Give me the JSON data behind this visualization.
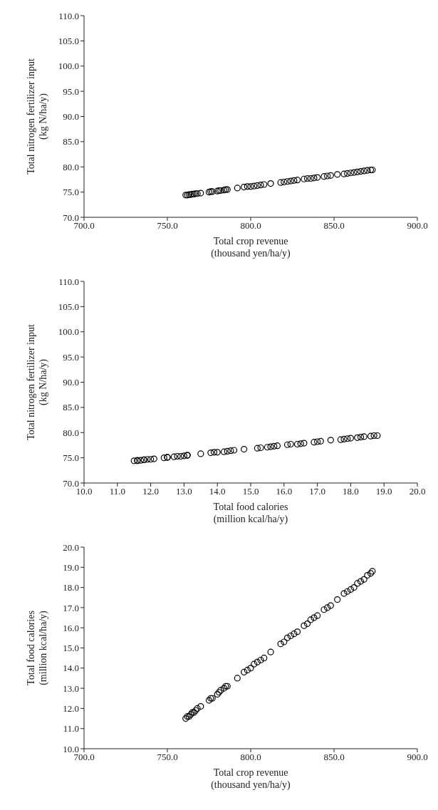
{
  "chart_data": [
    {
      "type": "scatter",
      "xlabel": "Total crop revenue\n(thousand yen/ha/y)",
      "ylabel": "Total nitrogen fertilizer  input\n(kg N/ha/y)",
      "marker": "circle",
      "grid": false,
      "xlim": [
        700,
        900
      ],
      "xticks": [
        {
          "value": 700,
          "label": "700.0"
        },
        {
          "value": 750,
          "label": "750.0"
        },
        {
          "value": 800,
          "label": "800.0"
        },
        {
          "value": 850,
          "label": "850.0"
        },
        {
          "value": 900,
          "label": "900.0"
        }
      ],
      "ylim": [
        70,
        110
      ],
      "yticks": [
        {
          "value": 70,
          "label": "70.0"
        },
        {
          "value": 75,
          "label": "75.0"
        },
        {
          "value": 80,
          "label": "80.0"
        },
        {
          "value": 85,
          "label": "85.0"
        },
        {
          "value": 90,
          "label": "90.0"
        },
        {
          "value": 95,
          "label": "95.0"
        },
        {
          "value": 100,
          "label": "100.0"
        },
        {
          "value": 105,
          "label": "105.0"
        },
        {
          "value": 110,
          "label": "110.0"
        }
      ],
      "series": [
        {
          "color": "#000000",
          "x": [
            761,
            762,
            763,
            764,
            765,
            766,
            767,
            768,
            770,
            775,
            776,
            777,
            780,
            781,
            782,
            784,
            785,
            786,
            792,
            796,
            798,
            800,
            802,
            804,
            806,
            808,
            812,
            818,
            820,
            822,
            824,
            826,
            828,
            832,
            834,
            836,
            838,
            840,
            844,
            846,
            848,
            852,
            856,
            858,
            860,
            862,
            864,
            866,
            868,
            870,
            872,
            873
          ],
          "values": [
            74.4,
            74.4,
            74.5,
            74.5,
            74.6,
            74.6,
            74.7,
            74.7,
            74.8,
            75.0,
            75.1,
            75.1,
            75.2,
            75.3,
            75.3,
            75.4,
            75.5,
            75.5,
            75.8,
            76.0,
            76.1,
            76.1,
            76.2,
            76.3,
            76.4,
            76.5,
            76.7,
            76.9,
            77.0,
            77.1,
            77.2,
            77.3,
            77.4,
            77.6,
            77.7,
            77.7,
            77.8,
            77.9,
            78.1,
            78.2,
            78.3,
            78.5,
            78.6,
            78.7,
            78.8,
            78.9,
            79.0,
            79.1,
            79.2,
            79.3,
            79.4,
            79.4
          ]
        }
      ]
    },
    {
      "type": "scatter",
      "xlabel": "Total food calories\n(million  kcal/ha/y)",
      "ylabel": "Total nitrogen fertilizer  input\n(kg N/ha/y)",
      "marker": "circle",
      "grid": false,
      "xlim": [
        10,
        20
      ],
      "xticks": [
        {
          "value": 10,
          "label": "10.0"
        },
        {
          "value": 11,
          "label": "11.0"
        },
        {
          "value": 12,
          "label": "12.0"
        },
        {
          "value": 13,
          "label": "13.0"
        },
        {
          "value": 14,
          "label": "14.0"
        },
        {
          "value": 15,
          "label": "15.0"
        },
        {
          "value": 16,
          "label": "16.0"
        },
        {
          "value": 17,
          "label": "17.0"
        },
        {
          "value": 18,
          "label": "18.0"
        },
        {
          "value": 19,
          "label": "19.0"
        },
        {
          "value": 20,
          "label": "20.0"
        }
      ],
      "ylim": [
        70,
        110
      ],
      "yticks": [
        {
          "value": 70,
          "label": "70.0"
        },
        {
          "value": 75,
          "label": "75.0"
        },
        {
          "value": 80,
          "label": "80.0"
        },
        {
          "value": 85,
          "label": "85.0"
        },
        {
          "value": 90,
          "label": "90.0"
        },
        {
          "value": 95,
          "label": "95.0"
        },
        {
          "value": 100,
          "label": "100.0"
        },
        {
          "value": 105,
          "label": "105.0"
        },
        {
          "value": 110,
          "label": "110.0"
        }
      ],
      "series": [
        {
          "color": "#000000",
          "x": [
            11.5,
            11.6,
            11.6,
            11.7,
            11.8,
            11.8,
            11.9,
            12.0,
            12.1,
            12.4,
            12.5,
            12.5,
            12.7,
            12.8,
            12.9,
            13.0,
            13.1,
            13.1,
            13.5,
            13.8,
            13.9,
            14.0,
            14.2,
            14.3,
            14.4,
            14.5,
            14.8,
            15.2,
            15.3,
            15.5,
            15.6,
            15.7,
            15.8,
            16.1,
            16.2,
            16.4,
            16.5,
            16.6,
            16.9,
            17.0,
            17.1,
            17.4,
            17.7,
            17.8,
            17.9,
            18.0,
            18.2,
            18.3,
            18.4,
            18.6,
            18.7,
            18.8
          ],
          "values": [
            74.4,
            74.4,
            74.5,
            74.5,
            74.6,
            74.6,
            74.7,
            74.7,
            74.8,
            75.0,
            75.1,
            75.1,
            75.2,
            75.3,
            75.3,
            75.4,
            75.5,
            75.5,
            75.8,
            76.0,
            76.1,
            76.1,
            76.2,
            76.3,
            76.4,
            76.5,
            76.7,
            76.9,
            77.0,
            77.1,
            77.2,
            77.3,
            77.4,
            77.6,
            77.7,
            77.7,
            77.8,
            77.9,
            78.1,
            78.2,
            78.3,
            78.5,
            78.6,
            78.7,
            78.8,
            78.9,
            79.0,
            79.1,
            79.2,
            79.3,
            79.4,
            79.4
          ]
        }
      ]
    },
    {
      "type": "scatter",
      "xlabel": "Total crop revenue\n(thousand yen/ha/y)",
      "ylabel": "Total food calories\n(million  kcal/ha/y)",
      "marker": "circle",
      "grid": false,
      "xlim": [
        700,
        900
      ],
      "xticks": [
        {
          "value": 700,
          "label": "700.0"
        },
        {
          "value": 750,
          "label": "750.0"
        },
        {
          "value": 800,
          "label": "800.0"
        },
        {
          "value": 850,
          "label": "850.0"
        },
        {
          "value": 900,
          "label": "900.0"
        }
      ],
      "ylim": [
        10,
        20
      ],
      "yticks": [
        {
          "value": 10,
          "label": "10.0"
        },
        {
          "value": 11,
          "label": "11.0"
        },
        {
          "value": 12,
          "label": "12.0"
        },
        {
          "value": 13,
          "label": "13.0"
        },
        {
          "value": 14,
          "label": "14.0"
        },
        {
          "value": 15,
          "label": "15.0"
        },
        {
          "value": 16,
          "label": "16.0"
        },
        {
          "value": 17,
          "label": "17.0"
        },
        {
          "value": 18,
          "label": "18.0"
        },
        {
          "value": 19,
          "label": "19.0"
        },
        {
          "value": 20,
          "label": "20.0"
        }
      ],
      "series": [
        {
          "color": "#000000",
          "x": [
            761,
            762,
            763,
            764,
            765,
            766,
            767,
            768,
            770,
            775,
            776,
            777,
            780,
            781,
            782,
            784,
            785,
            786,
            792,
            796,
            798,
            800,
            802,
            804,
            806,
            808,
            812,
            818,
            820,
            822,
            824,
            826,
            828,
            832,
            834,
            836,
            838,
            840,
            844,
            846,
            848,
            852,
            856,
            858,
            860,
            862,
            864,
            866,
            868,
            870,
            872,
            873
          ],
          "values": [
            11.5,
            11.6,
            11.6,
            11.7,
            11.8,
            11.8,
            11.9,
            12.0,
            12.1,
            12.4,
            12.5,
            12.5,
            12.7,
            12.8,
            12.9,
            13.0,
            13.1,
            13.1,
            13.5,
            13.8,
            13.9,
            14.0,
            14.2,
            14.3,
            14.4,
            14.5,
            14.8,
            15.2,
            15.3,
            15.5,
            15.6,
            15.7,
            15.8,
            16.1,
            16.2,
            16.4,
            16.5,
            16.6,
            16.9,
            17.0,
            17.1,
            17.4,
            17.7,
            17.8,
            17.9,
            18.0,
            18.2,
            18.3,
            18.4,
            18.6,
            18.7,
            18.8
          ]
        }
      ]
    }
  ]
}
